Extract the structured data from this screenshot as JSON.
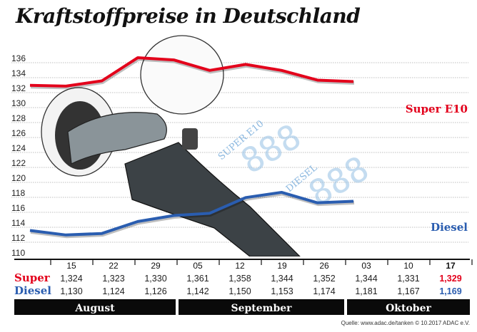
{
  "chart_data": {
    "type": "line",
    "title": "Kraftstoffpreise in Deutschland",
    "xlabel": "",
    "ylabel": "",
    "ylim": [
      110,
      136
    ],
    "yticks": [
      110,
      112,
      114,
      116,
      118,
      120,
      122,
      124,
      126,
      128,
      130,
      132,
      134,
      136
    ],
    "grid": true,
    "categories": [
      "15",
      "22",
      "29",
      "05",
      "12",
      "19",
      "26",
      "03",
      "10",
      "17"
    ],
    "months": [
      {
        "label": "August",
        "count": 3
      },
      {
        "label": "September",
        "count": 4
      },
      {
        "label": "Oktober",
        "count": 3
      }
    ],
    "series": [
      {
        "name": "Super E10",
        "table_label": "Super",
        "color": "#e3001b",
        "values": [
          132.4,
          132.3,
          133.0,
          136.1,
          135.8,
          134.4,
          135.2,
          134.4,
          133.1,
          132.9
        ],
        "table_values": [
          "1,324",
          "1,323",
          "1,330",
          "1,361",
          "1,358",
          "1,344",
          "1,352",
          "1,344",
          "1,331",
          "1,329"
        ]
      },
      {
        "name": "Diesel",
        "table_label": "Diesel",
        "color": "#2a5db0",
        "values": [
          113.0,
          112.4,
          112.6,
          114.2,
          115.0,
          115.3,
          117.4,
          118.1,
          116.7,
          116.9
        ],
        "table_values": [
          "1,130",
          "1,124",
          "1,126",
          "1,142",
          "1,150",
          "1,153",
          "1,174",
          "1,181",
          "1,167",
          "1,169"
        ]
      }
    ],
    "illustration_text": [
      "SUPER E10",
      "DIESEL"
    ]
  },
  "source": "Quelle: www.adac.de/tanken   © 10.2017  ADAC e.V."
}
